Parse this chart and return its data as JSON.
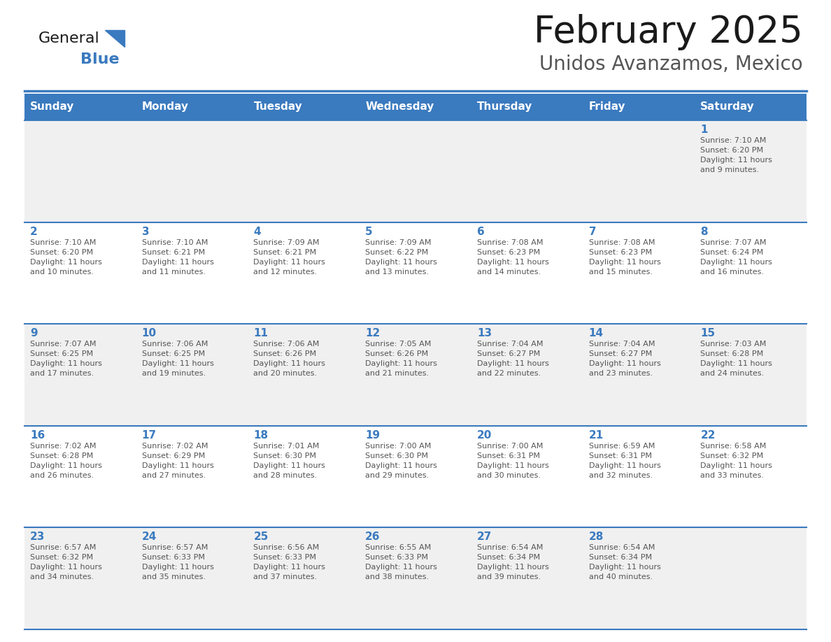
{
  "title": "February 2025",
  "subtitle": "Unidos Avanzamos, Mexico",
  "days_of_week": [
    "Sunday",
    "Monday",
    "Tuesday",
    "Wednesday",
    "Thursday",
    "Friday",
    "Saturday"
  ],
  "header_bg": "#3a7abf",
  "header_text": "#ffffff",
  "cell_bg_odd": "#f0f0f0",
  "cell_bg_even": "#ffffff",
  "line_color": "#3a7abf",
  "day_number_color": "#3a7abf",
  "text_color": "#555555",
  "title_color": "#1a1a1a",
  "subtitle_color": "#555555",
  "logo_general_color": "#1a1a1a",
  "logo_blue_color": "#3a7abf",
  "fig_width": 11.88,
  "fig_height": 9.18,
  "dpi": 100,
  "weeks": [
    [
      {
        "day": null,
        "info": ""
      },
      {
        "day": null,
        "info": ""
      },
      {
        "day": null,
        "info": ""
      },
      {
        "day": null,
        "info": ""
      },
      {
        "day": null,
        "info": ""
      },
      {
        "day": null,
        "info": ""
      },
      {
        "day": 1,
        "info": "Sunrise: 7:10 AM\nSunset: 6:20 PM\nDaylight: 11 hours\nand 9 minutes."
      }
    ],
    [
      {
        "day": 2,
        "info": "Sunrise: 7:10 AM\nSunset: 6:20 PM\nDaylight: 11 hours\nand 10 minutes."
      },
      {
        "day": 3,
        "info": "Sunrise: 7:10 AM\nSunset: 6:21 PM\nDaylight: 11 hours\nand 11 minutes."
      },
      {
        "day": 4,
        "info": "Sunrise: 7:09 AM\nSunset: 6:21 PM\nDaylight: 11 hours\nand 12 minutes."
      },
      {
        "day": 5,
        "info": "Sunrise: 7:09 AM\nSunset: 6:22 PM\nDaylight: 11 hours\nand 13 minutes."
      },
      {
        "day": 6,
        "info": "Sunrise: 7:08 AM\nSunset: 6:23 PM\nDaylight: 11 hours\nand 14 minutes."
      },
      {
        "day": 7,
        "info": "Sunrise: 7:08 AM\nSunset: 6:23 PM\nDaylight: 11 hours\nand 15 minutes."
      },
      {
        "day": 8,
        "info": "Sunrise: 7:07 AM\nSunset: 6:24 PM\nDaylight: 11 hours\nand 16 minutes."
      }
    ],
    [
      {
        "day": 9,
        "info": "Sunrise: 7:07 AM\nSunset: 6:25 PM\nDaylight: 11 hours\nand 17 minutes."
      },
      {
        "day": 10,
        "info": "Sunrise: 7:06 AM\nSunset: 6:25 PM\nDaylight: 11 hours\nand 19 minutes."
      },
      {
        "day": 11,
        "info": "Sunrise: 7:06 AM\nSunset: 6:26 PM\nDaylight: 11 hours\nand 20 minutes."
      },
      {
        "day": 12,
        "info": "Sunrise: 7:05 AM\nSunset: 6:26 PM\nDaylight: 11 hours\nand 21 minutes."
      },
      {
        "day": 13,
        "info": "Sunrise: 7:04 AM\nSunset: 6:27 PM\nDaylight: 11 hours\nand 22 minutes."
      },
      {
        "day": 14,
        "info": "Sunrise: 7:04 AM\nSunset: 6:27 PM\nDaylight: 11 hours\nand 23 minutes."
      },
      {
        "day": 15,
        "info": "Sunrise: 7:03 AM\nSunset: 6:28 PM\nDaylight: 11 hours\nand 24 minutes."
      }
    ],
    [
      {
        "day": 16,
        "info": "Sunrise: 7:02 AM\nSunset: 6:28 PM\nDaylight: 11 hours\nand 26 minutes."
      },
      {
        "day": 17,
        "info": "Sunrise: 7:02 AM\nSunset: 6:29 PM\nDaylight: 11 hours\nand 27 minutes."
      },
      {
        "day": 18,
        "info": "Sunrise: 7:01 AM\nSunset: 6:30 PM\nDaylight: 11 hours\nand 28 minutes."
      },
      {
        "day": 19,
        "info": "Sunrise: 7:00 AM\nSunset: 6:30 PM\nDaylight: 11 hours\nand 29 minutes."
      },
      {
        "day": 20,
        "info": "Sunrise: 7:00 AM\nSunset: 6:31 PM\nDaylight: 11 hours\nand 30 minutes."
      },
      {
        "day": 21,
        "info": "Sunrise: 6:59 AM\nSunset: 6:31 PM\nDaylight: 11 hours\nand 32 minutes."
      },
      {
        "day": 22,
        "info": "Sunrise: 6:58 AM\nSunset: 6:32 PM\nDaylight: 11 hours\nand 33 minutes."
      }
    ],
    [
      {
        "day": 23,
        "info": "Sunrise: 6:57 AM\nSunset: 6:32 PM\nDaylight: 11 hours\nand 34 minutes."
      },
      {
        "day": 24,
        "info": "Sunrise: 6:57 AM\nSunset: 6:33 PM\nDaylight: 11 hours\nand 35 minutes."
      },
      {
        "day": 25,
        "info": "Sunrise: 6:56 AM\nSunset: 6:33 PM\nDaylight: 11 hours\nand 37 minutes."
      },
      {
        "day": 26,
        "info": "Sunrise: 6:55 AM\nSunset: 6:33 PM\nDaylight: 11 hours\nand 38 minutes."
      },
      {
        "day": 27,
        "info": "Sunrise: 6:54 AM\nSunset: 6:34 PM\nDaylight: 11 hours\nand 39 minutes."
      },
      {
        "day": 28,
        "info": "Sunrise: 6:54 AM\nSunset: 6:34 PM\nDaylight: 11 hours\nand 40 minutes."
      },
      {
        "day": null,
        "info": ""
      }
    ]
  ]
}
